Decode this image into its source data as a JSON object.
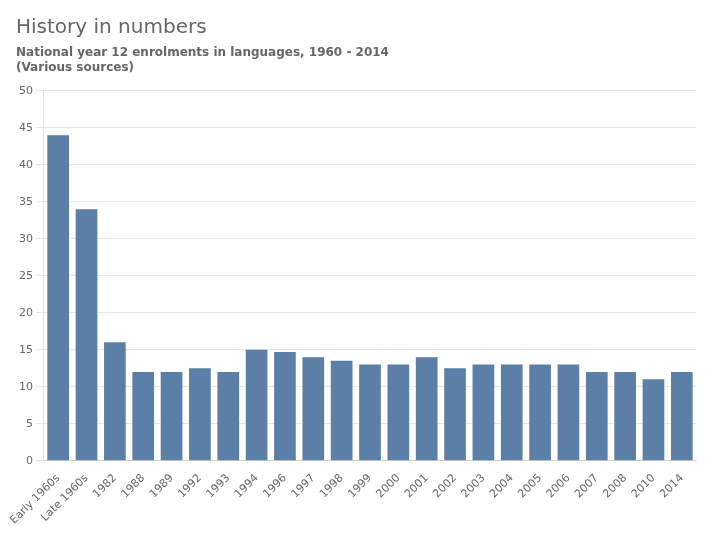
{
  "chart_data": {
    "type": "bar",
    "title": "History in numbers",
    "subtitle": "National year 12 enrolments in languages, 1960 - 2014\n(Various sources)",
    "categories": [
      "Early 1960s",
      "Late 1960s",
      "1982",
      "1988",
      "1989",
      "1992",
      "1993",
      "1994",
      "1996",
      "1997",
      "1998",
      "1999",
      "2000",
      "2001",
      "2002",
      "2003",
      "2004",
      "2005",
      "2006",
      "2007",
      "2008",
      "2010",
      "2014"
    ],
    "values": [
      44,
      34,
      16,
      12,
      12,
      12.5,
      12,
      15,
      14.7,
      14,
      13.5,
      13,
      13,
      14,
      12.5,
      13,
      13,
      13,
      13,
      12,
      12,
      11,
      12
    ],
    "color": "#5b7fa6",
    "ylim": [
      0,
      50
    ],
    "yticks": [
      0,
      5,
      10,
      15,
      20,
      25,
      30,
      35,
      40,
      45,
      50
    ],
    "grid": true
  }
}
